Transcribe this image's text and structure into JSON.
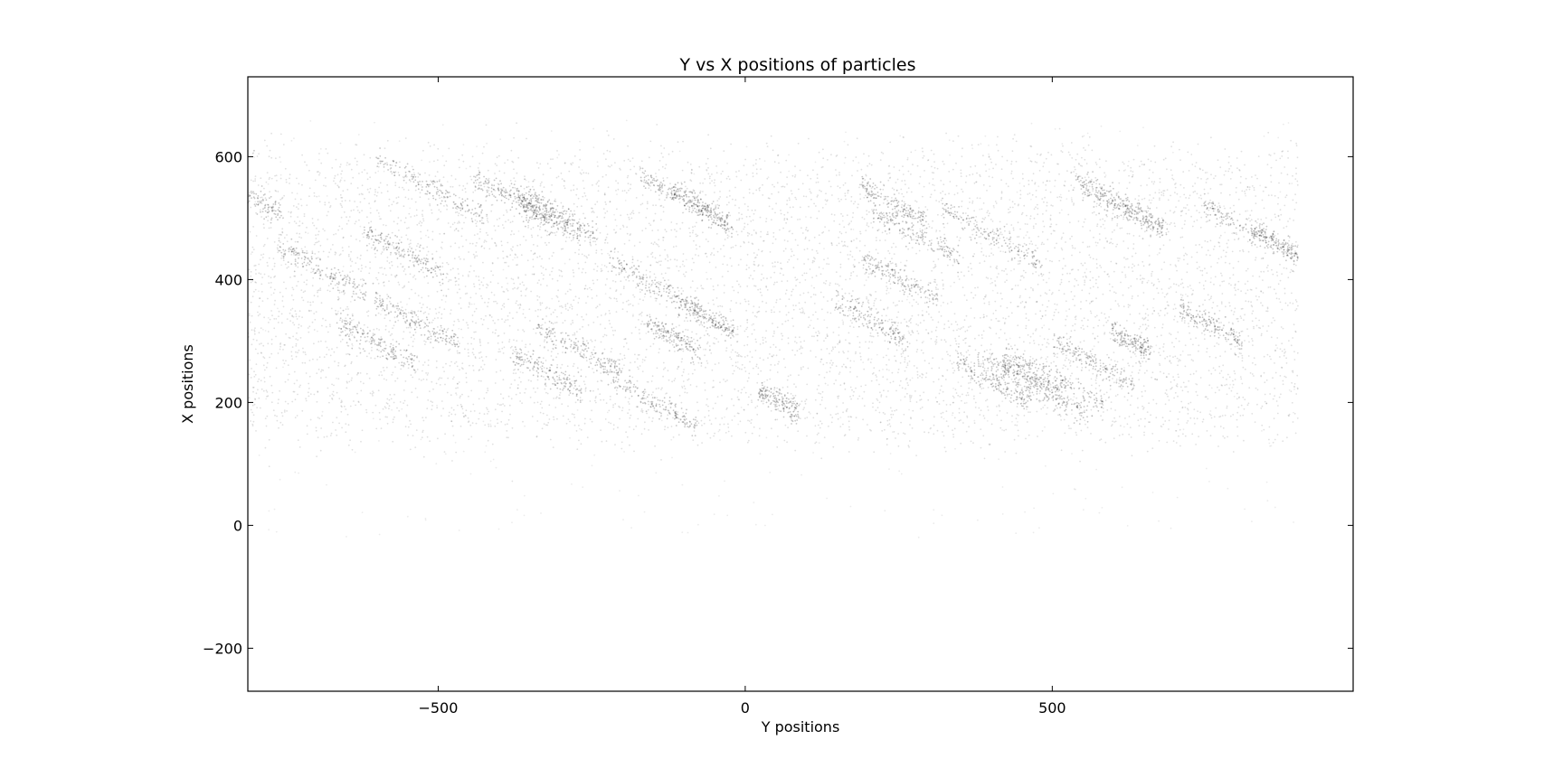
{
  "chart_data": {
    "type": "scatter",
    "title": "Y vs X positions of particles",
    "xlabel": "Y positions",
    "ylabel": "X positions",
    "xlim": [
      -810,
      990
    ],
    "ylim": [
      -270,
      730
    ],
    "x_ticks": [
      -500,
      0,
      500
    ],
    "x_tick_labels": [
      "−500",
      "0",
      "500"
    ],
    "y_ticks": [
      -200,
      0,
      200,
      400,
      600
    ],
    "y_tick_labels": [
      "−200",
      "0",
      "200",
      "400",
      "600"
    ],
    "grid": false,
    "legend": "none",
    "point_color": "#000000",
    "series": [
      {
        "description_of_distribution": "",
        "x_range": [
          -810,
          900
        ],
        "y_core_range": [
          150,
          600
        ],
        "y_sparse_range": [
          -20,
          660
        ],
        "stripe_slope": -0.25,
        "stripe_orientation": "diagonal bands descending to the right"
      }
    ]
  }
}
